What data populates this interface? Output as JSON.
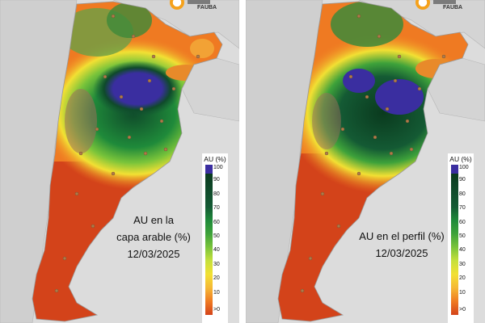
{
  "panels": [
    {
      "annotation_lines": [
        "AU en la",
        "capa arable (%)",
        "12/03/2025"
      ],
      "legend": {
        "title": "AU (%)",
        "ticks": [
          "100",
          "90",
          "80",
          "70",
          "60",
          "50",
          "40",
          "30",
          "20",
          "10",
          ">0"
        ]
      },
      "logo_text": "FAUBA"
    },
    {
      "annotation_lines": [
        "AU en el perfil (%)",
        "12/03/2025"
      ],
      "legend": {
        "title": "AU (%)",
        "ticks": [
          "100",
          "90",
          "80",
          "70",
          "60",
          "50",
          "40",
          "30",
          "20",
          "10",
          ">0"
        ]
      },
      "logo_text": "FAUBA"
    }
  ],
  "colors": {
    "pct_100": "#3a2ea0",
    "pct_90": "#0a3a1e",
    "pct_60": "#1f8a3a",
    "pct_40": "#c6e03c",
    "pct_30": "#f2e033",
    "pct_10": "#ef7a22",
    "pct_0": "#d3431a",
    "station_dot": "#b07a4a",
    "background": "#dcdcdc"
  }
}
